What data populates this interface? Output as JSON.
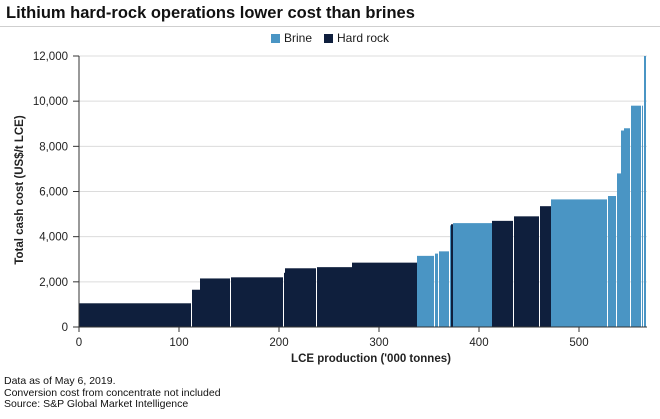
{
  "chart_data": {
    "type": "bar",
    "subtype": "cost-curve",
    "title": "Lithium hard-rock operations lower cost than brines",
    "xlabel": "LCE production ('000 tonnes)",
    "ylabel": "Total cash cost (US$/t LCE)",
    "xlim": [
      0,
      568
    ],
    "ylim": [
      0,
      12000
    ],
    "x_ticks": [
      0,
      100,
      200,
      300,
      400,
      500
    ],
    "y_ticks": [
      0,
      2000,
      4000,
      6000,
      8000,
      10000,
      12000
    ],
    "x_tick_labels": [
      "0",
      "100",
      "200",
      "300",
      "400",
      "500"
    ],
    "y_tick_labels": [
      "0",
      "2,000",
      "4,000",
      "6,000",
      "8,000",
      "10,000",
      "12,000"
    ],
    "grid": true,
    "legend_position": "top-center",
    "series": [
      {
        "name": "Brine",
        "color": "#4a95c4"
      },
      {
        "name": "Hard rock",
        "color": "#0f1f3d"
      }
    ],
    "bars": [
      {
        "x0": 0,
        "x1": 112,
        "value": 1050,
        "series": "Hard rock"
      },
      {
        "x0": 113,
        "x1": 121,
        "value": 1650,
        "series": "Hard rock"
      },
      {
        "x0": 121,
        "x1": 151,
        "value": 2150,
        "series": "Hard rock"
      },
      {
        "x0": 152,
        "x1": 204,
        "value": 2200,
        "series": "Hard rock"
      },
      {
        "x0": 205,
        "x1": 206,
        "value": 2400,
        "series": "Hard rock"
      },
      {
        "x0": 206,
        "x1": 237,
        "value": 2600,
        "series": "Hard rock"
      },
      {
        "x0": 238,
        "x1": 273,
        "value": 2650,
        "series": "Hard rock"
      },
      {
        "x0": 273,
        "x1": 338,
        "value": 2850,
        "series": "Hard rock"
      },
      {
        "x0": 338,
        "x1": 355,
        "value": 3150,
        "series": "Brine"
      },
      {
        "x0": 356,
        "x1": 359,
        "value": 3250,
        "series": "Brine"
      },
      {
        "x0": 360,
        "x1": 370,
        "value": 3350,
        "series": "Brine"
      },
      {
        "x0": 371,
        "x1": 372,
        "value": 4500,
        "series": "Brine"
      },
      {
        "x0": 372,
        "x1": 374,
        "value": 4550,
        "series": "Hard rock"
      },
      {
        "x0": 374,
        "x1": 413,
        "value": 4600,
        "series": "Brine"
      },
      {
        "x0": 413,
        "x1": 434,
        "value": 4700,
        "series": "Hard rock"
      },
      {
        "x0": 435,
        "x1": 460,
        "value": 4900,
        "series": "Hard rock"
      },
      {
        "x0": 461,
        "x1": 472,
        "value": 5350,
        "series": "Hard rock"
      },
      {
        "x0": 472,
        "x1": 528,
        "value": 5650,
        "series": "Brine"
      },
      {
        "x0": 529,
        "x1": 537,
        "value": 5800,
        "series": "Brine"
      },
      {
        "x0": 538,
        "x1": 542,
        "value": 6800,
        "series": "Brine"
      },
      {
        "x0": 542,
        "x1": 545,
        "value": 8700,
        "series": "Brine"
      },
      {
        "x0": 545,
        "x1": 551,
        "value": 8800,
        "series": "Brine"
      },
      {
        "x0": 552,
        "x1": 562,
        "value": 9800,
        "series": "Brine"
      },
      {
        "x0": 563,
        "x1": 564,
        "value": 9800,
        "series": "Brine"
      },
      {
        "x0": 565,
        "x1": 567,
        "value": 12000,
        "series": "Brine"
      }
    ]
  },
  "footer": {
    "line1": "Data as of May 6, 2019.",
    "line2": "Conversion cost from concentrate not included",
    "line3": "Source: S&P Global Market Intelligence"
  }
}
